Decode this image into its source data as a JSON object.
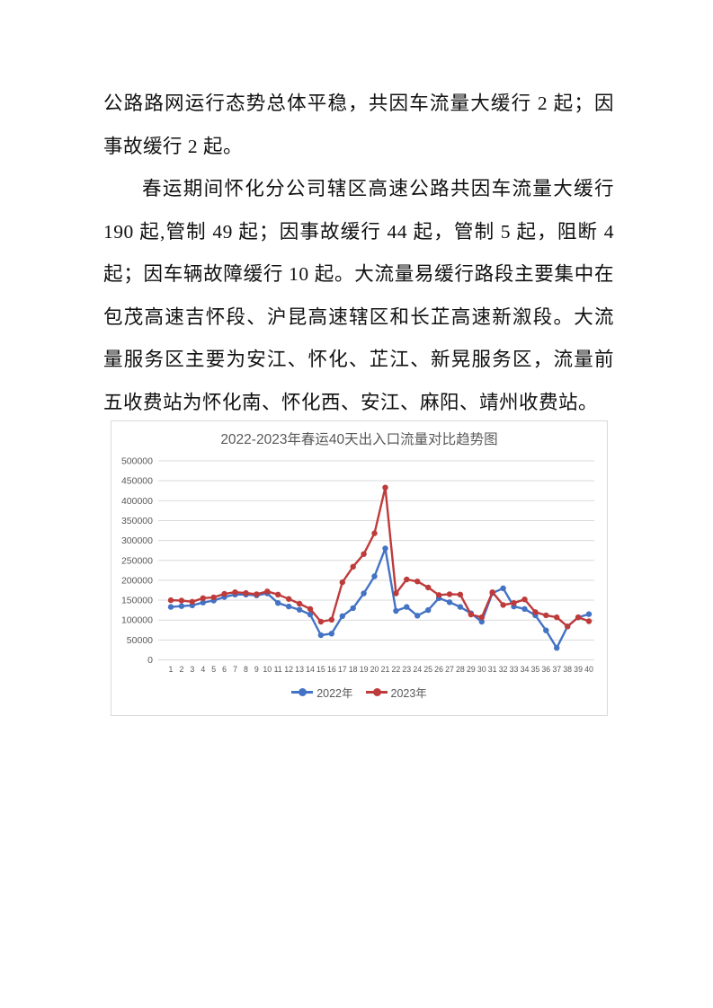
{
  "document": {
    "paragraph1": "公路路网运行态势总体平稳，共因车流量大缓行 2 起；因事故缓行 2 起。",
    "paragraph2": "春运期间怀化分公司辖区高速公路共因车流量大缓行 190 起,管制 49 起；因事故缓行 44 起，管制 5 起，阻断 4 起；因车辆故障缓行 10 起。大流量易缓行路段主要集中在包茂高速吉怀段、沪昆高速辖区和长芷高速新溆段。大流量服务区主要为安江、怀化、芷江、新晃服务区，流量前五收费站为怀化南、怀化西、安江、麻阳、靖州收费站。",
    "section_heading": "◆2022-2023 年春运 40 天出入口流量对比趋势图"
  },
  "chart_data": {
    "type": "line",
    "title": "2022-2023年春运40天出入口流量对比趋势图",
    "days": [
      1,
      2,
      3,
      4,
      5,
      6,
      7,
      8,
      9,
      10,
      11,
      12,
      13,
      14,
      15,
      16,
      17,
      18,
      19,
      20,
      21,
      22,
      23,
      24,
      25,
      26,
      27,
      28,
      29,
      30,
      31,
      32,
      33,
      34,
      35,
      36,
      37,
      38,
      39,
      40
    ],
    "series": [
      {
        "name": "2022年",
        "color": "#4472c4",
        "values": [
          133000,
          135000,
          137000,
          144000,
          149000,
          158000,
          164000,
          164000,
          162000,
          167000,
          143000,
          134000,
          126000,
          114000,
          62000,
          66000,
          110000,
          130000,
          167000,
          210000,
          280000,
          123000,
          133000,
          111000,
          125000,
          155000,
          145000,
          133000,
          117000,
          96000,
          168000,
          180000,
          134000,
          128000,
          112000,
          74000,
          30000,
          84000,
          107000,
          115000
        ]
      },
      {
        "name": "2023年",
        "color": "#be3b3b",
        "values": [
          150000,
          149000,
          146000,
          155000,
          157000,
          166000,
          170000,
          168000,
          165000,
          172000,
          164000,
          153000,
          141000,
          128000,
          96000,
          101000,
          195000,
          234000,
          266000,
          318000,
          433000,
          167000,
          202000,
          197000,
          182000,
          163000,
          165000,
          164000,
          114000,
          107000,
          170000,
          138000,
          143000,
          152000,
          120000,
          112000,
          107000,
          84000,
          107000,
          97000
        ]
      }
    ],
    "ylim": [
      0,
      500000
    ],
    "ytick_step": 50000,
    "grid": true,
    "legend_position": "bottom",
    "colors": {
      "grid": "#d9d9d9",
      "axis_label": "#595959",
      "title": "#595959"
    }
  }
}
